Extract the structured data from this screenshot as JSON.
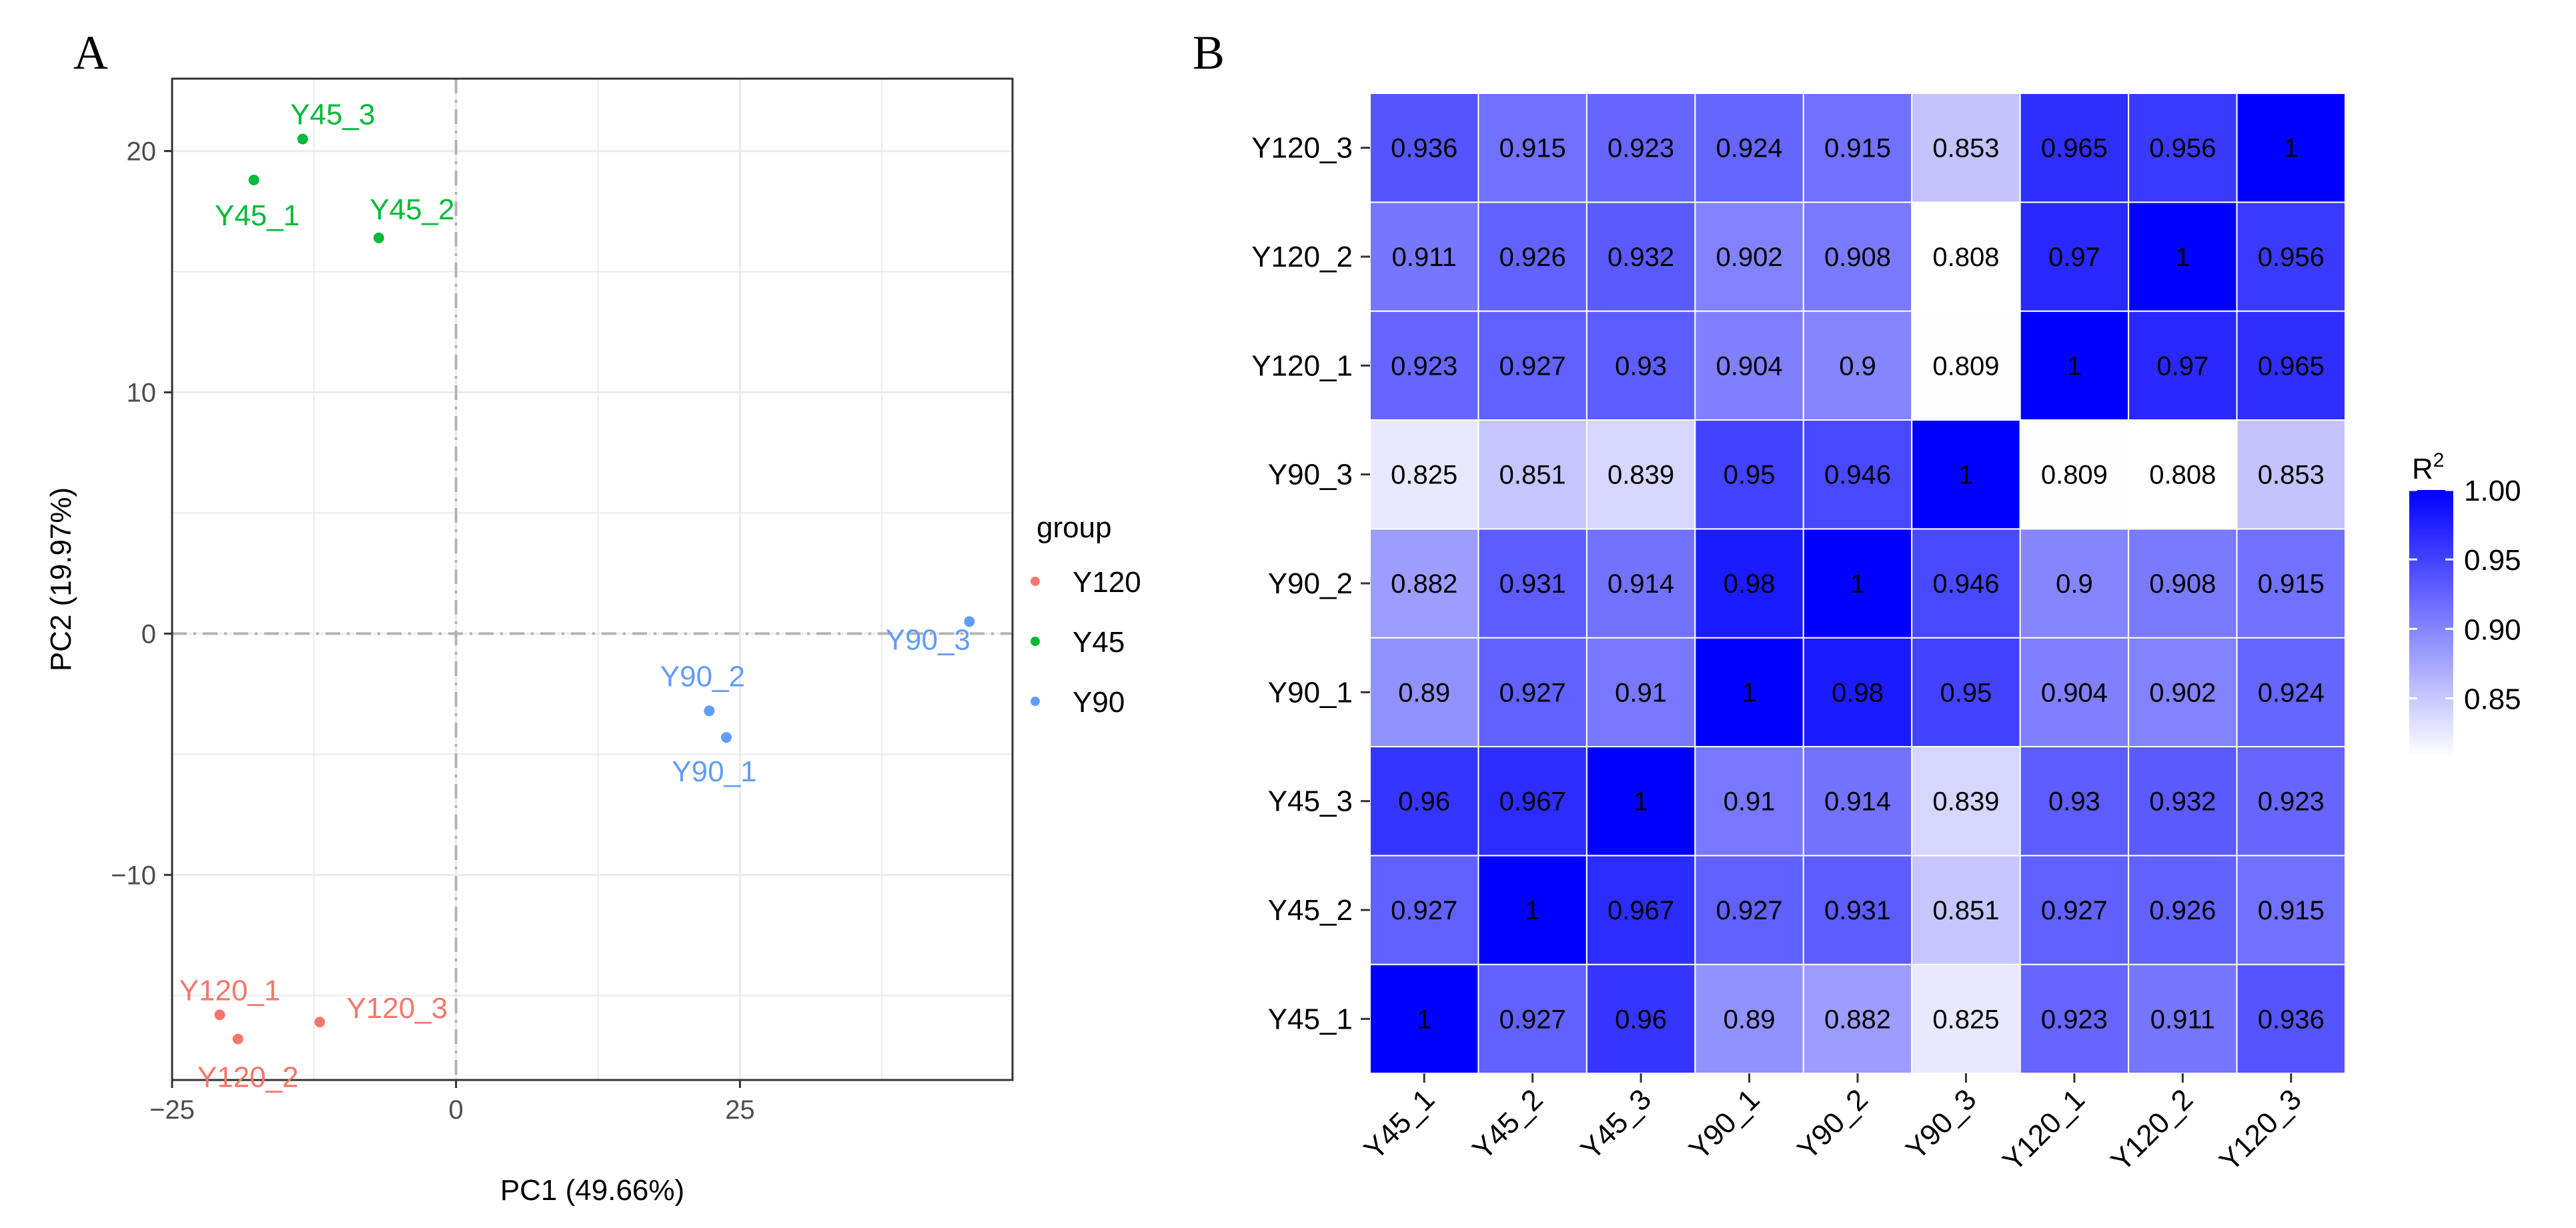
{
  "chart_data": [
    {
      "panel": "A",
      "type": "scatter",
      "xlabel": "PC1 (49.66%)",
      "ylabel": "PC2 (19.97%)",
      "xlim": [
        -25,
        49
      ],
      "ylim": [
        -18.5,
        23
      ],
      "xticks": [
        -25,
        0,
        25
      ],
      "yticks": [
        -10,
        0,
        10,
        20
      ],
      "grid": true,
      "legend": {
        "title": "group",
        "position": "right",
        "entries": [
          {
            "name": "Y120",
            "color": "#F8766D"
          },
          {
            "name": "Y45",
            "color": "#00BA38"
          },
          {
            "name": "Y90",
            "color": "#619CFF"
          }
        ]
      },
      "points": [
        {
          "label": "Y45_3",
          "group": "Y45",
          "x": -13.5,
          "y": 20.5
        },
        {
          "label": "Y45_1",
          "group": "Y45",
          "x": -17.8,
          "y": 18.8
        },
        {
          "label": "Y45_2",
          "group": "Y45",
          "x": -6.8,
          "y": 16.4
        },
        {
          "label": "Y90_3",
          "group": "Y90",
          "x": 45.2,
          "y": 0.5
        },
        {
          "label": "Y90_2",
          "group": "Y90",
          "x": 22.3,
          "y": -3.2
        },
        {
          "label": "Y90_1",
          "group": "Y90",
          "x": 23.8,
          "y": -4.3
        },
        {
          "label": "Y120_1",
          "group": "Y120",
          "x": -20.8,
          "y": -15.8
        },
        {
          "label": "Y120_3",
          "group": "Y120",
          "x": -12.0,
          "y": -16.1
        },
        {
          "label": "Y120_2",
          "group": "Y120",
          "x": -19.2,
          "y": -16.8
        }
      ]
    },
    {
      "panel": "B",
      "type": "heatmap",
      "labels": [
        "Y45_1",
        "Y45_2",
        "Y45_3",
        "Y90_1",
        "Y90_2",
        "Y90_3",
        "Y120_1",
        "Y120_2",
        "Y120_3"
      ],
      "matrix": [
        [
          "1",
          "0.927",
          "0.96",
          "0.89",
          "0.882",
          "0.825",
          "0.923",
          "0.911",
          "0.936"
        ],
        [
          "0.927",
          "1",
          "0.967",
          "0.927",
          "0.931",
          "0.851",
          "0.927",
          "0.926",
          "0.915"
        ],
        [
          "0.96",
          "0.967",
          "1",
          "0.91",
          "0.914",
          "0.839",
          "0.93",
          "0.932",
          "0.923"
        ],
        [
          "0.89",
          "0.927",
          "0.91",
          "1",
          "0.98",
          "0.95",
          "0.904",
          "0.902",
          "0.924"
        ],
        [
          "0.882",
          "0.931",
          "0.914",
          "0.98",
          "1",
          "0.946",
          "0.9",
          "0.908",
          "0.915"
        ],
        [
          "0.825",
          "0.851",
          "0.839",
          "0.95",
          "0.946",
          "1",
          "0.809",
          "0.808",
          "0.853"
        ],
        [
          "0.923",
          "0.927",
          "0.93",
          "0.904",
          "0.9",
          "0.809",
          "1",
          "0.97",
          "0.965"
        ],
        [
          "0.911",
          "0.926",
          "0.932",
          "0.902",
          "0.908",
          "0.808",
          "0.97",
          "1",
          "0.956"
        ],
        [
          "0.936",
          "0.915",
          "0.923",
          "0.924",
          "0.915",
          "0.853",
          "0.965",
          "0.956",
          "1"
        ]
      ],
      "colorbar": {
        "title": "R",
        "title_superscript": "2",
        "range": [
          0.808,
          1.0
        ],
        "ticks": [
          "1.00",
          "0.95",
          "0.90",
          "0.85"
        ],
        "low_color": "#FFFFFF",
        "high_color": "#0000FF"
      }
    }
  ],
  "panel_letters": [
    "A",
    "B"
  ]
}
